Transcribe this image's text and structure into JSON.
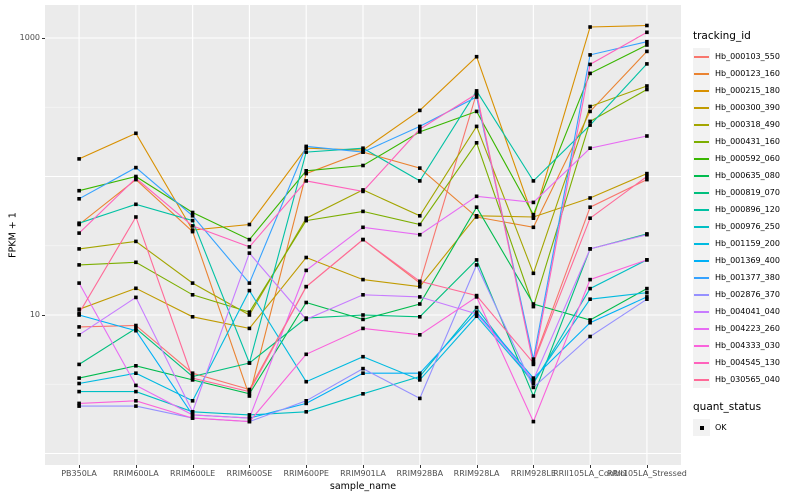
{
  "chart_data": {
    "type": "line",
    "title": "",
    "xlabel": "sample_name",
    "ylabel": "FPKM + 1",
    "y_scale": "log10",
    "ylim": [
      0.83,
      1730
    ],
    "grid": true,
    "legend_position": "right",
    "point_marker": "black-square",
    "y_ticks": [
      {
        "value": 1000,
        "label": "1000"
      },
      {
        "value": 10,
        "label": "10"
      }
    ],
    "y_major_gridlines": [
      1,
      10,
      100,
      1000
    ],
    "y_minor_gridlines": [
      3.162,
      31.62,
      316.2
    ],
    "categories": [
      "PB350LA",
      "RRIM600LA",
      "RRIM600LE",
      "RRIM600SE",
      "RRIM600PE",
      "RRIM901LA",
      "RRIM928BA",
      "RRIM928LA",
      "RRIM928LE",
      "RRII105LA_Control",
      "RRII105LA_Stressed"
    ],
    "series": [
      {
        "name": "Hb_000103_550",
        "color": "#F8766D",
        "values": [
          8.2,
          8.4,
          3.8,
          2.9,
          16,
          35,
          17,
          400,
          4.6,
          60,
          95
        ]
      },
      {
        "name": "Hb_000123_160",
        "color": "#EA8331",
        "values": [
          45,
          95,
          40,
          2.6,
          105,
          150,
          115,
          51,
          43,
          295,
          800
        ]
      },
      {
        "name": "Hb_000215_180",
        "color": "#D89000",
        "values": [
          134,
          205,
          41,
          45,
          160,
          155,
          300,
          733,
          50,
          1200,
          1230
        ]
      },
      {
        "name": "Hb_000300_390",
        "color": "#C09B00",
        "values": [
          11,
          15.6,
          9.7,
          8,
          26,
          18,
          16,
          52,
          51,
          70,
          105
        ]
      },
      {
        "name": "Hb_000318_490",
        "color": "#A3A500",
        "values": [
          30,
          34,
          17,
          10,
          50,
          80,
          52,
          230,
          20,
          320,
          450
        ]
      },
      {
        "name": "Hb_000431_160",
        "color": "#7CAE00",
        "values": [
          23,
          24,
          14,
          10.5,
          48,
          56,
          45,
          175,
          11.5,
          250,
          425
        ]
      },
      {
        "name": "Hb_000592_060",
        "color": "#39B600",
        "values": [
          79,
          100,
          55,
          35,
          110,
          120,
          210,
          295,
          53,
          555,
          890
        ]
      },
      {
        "name": "Hb_000635_080",
        "color": "#00BB4E",
        "values": [
          3.5,
          4.3,
          3.4,
          2.7,
          12.3,
          9.3,
          12,
          60,
          12,
          9.2,
          15.5
        ]
      },
      {
        "name": "Hb_000819_070",
        "color": "#00BF7D",
        "values": [
          4.4,
          8.0,
          3.6,
          4.5,
          9.5,
          10,
          9.7,
          25,
          2.6,
          30,
          38.5
        ]
      },
      {
        "name": "Hb_000896_120",
        "color": "#00C1A3",
        "values": [
          46,
          63,
          48,
          4.5,
          150,
          160,
          93,
          415,
          93,
          235,
          650
        ]
      },
      {
        "name": "Hb_000976_250",
        "color": "#00BFC4",
        "values": [
          2.8,
          2.8,
          2.0,
          1.9,
          2.0,
          2.7,
          3.6,
          11.3,
          3.2,
          15.5,
          25
        ]
      },
      {
        "name": "Hb_001159_200",
        "color": "#00BAE0",
        "values": [
          3.2,
          3.8,
          2.4,
          15,
          3.3,
          5.0,
          3.4,
          9.8,
          3.3,
          13,
          14.5
        ]
      },
      {
        "name": "Hb_001369_400",
        "color": "#00B0F6",
        "values": [
          10,
          7.7,
          1.9,
          1.8,
          2.3,
          3.8,
          3.8,
          10.5,
          3.5,
          8.8,
          13.5
        ]
      },
      {
        "name": "Hb_001377_380",
        "color": "#35A2FF",
        "values": [
          69,
          116,
          52,
          17,
          165,
          150,
          230,
          375,
          4.8,
          755,
          940
        ]
      },
      {
        "name": "Hb_002876_370",
        "color": "#9590FF",
        "values": [
          2.2,
          2.2,
          1.8,
          1.7,
          2.4,
          4.1,
          2.5,
          23,
          3.0,
          7.0,
          13
        ]
      },
      {
        "name": "Hb_004041_040",
        "color": "#C77CFF",
        "values": [
          7.2,
          13.4,
          2.0,
          28,
          9.3,
          14,
          13.5,
          10.2,
          3.4,
          30,
          38
        ]
      },
      {
        "name": "Hb_004223_260",
        "color": "#E76BF3",
        "values": [
          17,
          3.1,
          1.9,
          1.8,
          21,
          43,
          38,
          72,
          65,
          160,
          196
        ]
      },
      {
        "name": "Hb_004333_030",
        "color": "#FA62DB",
        "values": [
          2.3,
          2.4,
          1.8,
          1.7,
          5.2,
          8,
          7.2,
          13.5,
          1.7,
          18,
          25
        ]
      },
      {
        "name": "Hb_004545_130",
        "color": "#FF62BC",
        "values": [
          39,
          97,
          44,
          31,
          93,
          78,
          220,
          395,
          4.4,
          645,
          1100
        ]
      },
      {
        "name": "Hb_030565_040",
        "color": "#FF6A98",
        "values": [
          10.3,
          51,
          3.5,
          2.8,
          16,
          35,
          17.5,
          13.8,
          4.5,
          50,
          100
        ]
      }
    ]
  },
  "legend": {
    "tracking_title": "tracking_id",
    "quant_title": "quant_status",
    "quant_items": [
      {
        "label": "OK",
        "marker": "black-square"
      }
    ]
  },
  "style": {
    "panel_bg": "#EBEBEB",
    "grid_major": "#FFFFFF",
    "grid_minor": "#F5F5F5",
    "point_color": "#000000",
    "axis_text_color": "#4D4D4D",
    "legend_key_bg": "#F2F2F2"
  }
}
